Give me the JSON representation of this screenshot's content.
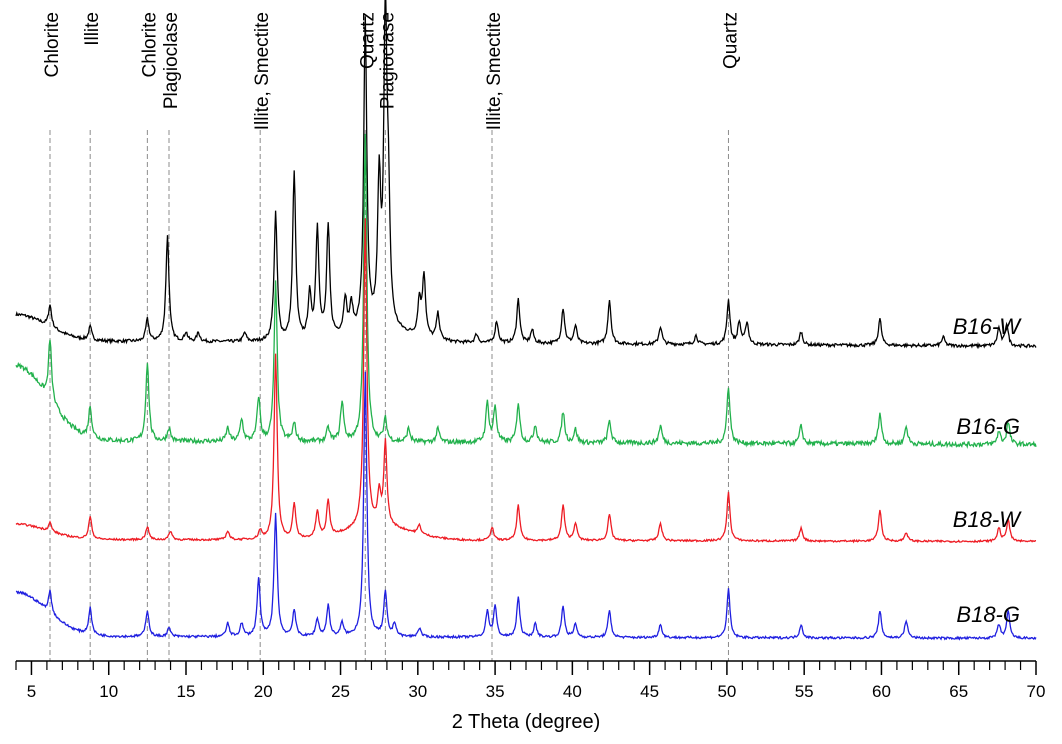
{
  "chart_data": {
    "type": "line",
    "title": "",
    "xlabel": "2 Theta (degree)",
    "ylabel": "",
    "xlim": [
      4,
      70
    ],
    "x_ticks": [
      5,
      10,
      15,
      20,
      25,
      30,
      35,
      40,
      45,
      50,
      55,
      60,
      65,
      70
    ],
    "grid": false,
    "legend": "labels at right end of each curve",
    "mineral_lines": [
      {
        "label": "Chlorite",
        "x": 6.2
      },
      {
        "label": "Illite",
        "x": 8.8
      },
      {
        "label": "Chlorite",
        "x": 12.5
      },
      {
        "label": "Plagioclase",
        "x": 13.9
      },
      {
        "label": "Illite, Smectite",
        "x": 19.8
      },
      {
        "label": "Quartz",
        "x": 26.6
      },
      {
        "label": "Plagioclase",
        "x": 27.9
      },
      {
        "label": "Illite, Smectite",
        "x": 34.8
      },
      {
        "label": "Quartz",
        "x": 50.1
      }
    ],
    "series": [
      {
        "name": "B16-W",
        "color": "#000000",
        "baseline": 0.72,
        "slope": 0.4,
        "start_hump": 0.6,
        "hump_center": 27.5,
        "hump_height": 0.25,
        "tail": 0.2,
        "peaks": [
          [
            6.2,
            0.5
          ],
          [
            8.8,
            0.3
          ],
          [
            12.5,
            0.5
          ],
          [
            13.8,
            2.4
          ],
          [
            15,
            0.2
          ],
          [
            15.8,
            0.2
          ],
          [
            18.8,
            0.2
          ],
          [
            20.8,
            2.9
          ],
          [
            22,
            3.8
          ],
          [
            23,
            1.0
          ],
          [
            23.5,
            2.5
          ],
          [
            24.2,
            2.5
          ],
          [
            25.3,
            0.8
          ],
          [
            25.7,
            0.6
          ],
          [
            26.6,
            7.0
          ],
          [
            27.5,
            3.2
          ],
          [
            27.9,
            7.0
          ],
          [
            28.1,
            2.4
          ],
          [
            30.1,
            0.8
          ],
          [
            30.4,
            1.4
          ],
          [
            31.3,
            0.6
          ],
          [
            33.8,
            0.2
          ],
          [
            35.1,
            0.5
          ],
          [
            36.5,
            1.0
          ],
          [
            37.4,
            0.3
          ],
          [
            39.4,
            0.8
          ],
          [
            40.2,
            0.4
          ],
          [
            42.4,
            1.0
          ],
          [
            45.7,
            0.4
          ],
          [
            48,
            0.2
          ],
          [
            50.1,
            1.0
          ],
          [
            50.8,
            0.5
          ],
          [
            51.3,
            0.5
          ],
          [
            54.8,
            0.3
          ],
          [
            59.9,
            0.6
          ],
          [
            64,
            0.2
          ],
          [
            67.6,
            0.4
          ],
          [
            68.1,
            0.5
          ]
        ]
      },
      {
        "name": "B16-G",
        "color": "#22b14c",
        "baseline": 0.92,
        "slope": 0.3,
        "start_hump": 1.7,
        "hump_center": 0,
        "hump_height": 0,
        "tail": 0.3,
        "peaks": [
          [
            6.2,
            1.4
          ],
          [
            8.8,
            0.7
          ],
          [
            12.5,
            1.8
          ],
          [
            13.9,
            0.3
          ],
          [
            17.7,
            0.3
          ],
          [
            18.6,
            0.5
          ],
          [
            19.7,
            1.0
          ],
          [
            20.8,
            3.6
          ],
          [
            22,
            0.4
          ],
          [
            24.2,
            0.3
          ],
          [
            25.1,
            0.9
          ],
          [
            26.6,
            7.0
          ],
          [
            27.9,
            0.5
          ],
          [
            29.4,
            0.3
          ],
          [
            31.3,
            0.3
          ],
          [
            34.5,
            0.9
          ],
          [
            35,
            0.8
          ],
          [
            36.5,
            0.9
          ],
          [
            37.6,
            0.4
          ],
          [
            39.4,
            0.7
          ],
          [
            40.2,
            0.3
          ],
          [
            42.4,
            0.5
          ],
          [
            45.7,
            0.4
          ],
          [
            50.1,
            1.3
          ],
          [
            54.8,
            0.4
          ],
          [
            59.9,
            0.7
          ],
          [
            61.6,
            0.4
          ],
          [
            67.6,
            0.3
          ],
          [
            68.2,
            0.5
          ]
        ]
      },
      {
        "name": "B18-W",
        "color": "#ee1c24",
        "baseline": 0.43,
        "slope": 0.15,
        "start_hump": 0.35,
        "hump_center": 27.5,
        "hump_height": 0.3,
        "tail": 0.12,
        "peaks": [
          [
            6.2,
            0.2
          ],
          [
            8.8,
            0.5
          ],
          [
            12.5,
            0.3
          ],
          [
            14,
            0.2
          ],
          [
            17.7,
            0.2
          ],
          [
            19.8,
            0.2
          ],
          [
            20.8,
            4.2
          ],
          [
            22,
            0.8
          ],
          [
            23.5,
            0.6
          ],
          [
            24.2,
            0.8
          ],
          [
            26.6,
            7.0
          ],
          [
            27.5,
            0.7
          ],
          [
            27.9,
            1.9
          ],
          [
            30.1,
            0.2
          ],
          [
            34.8,
            0.3
          ],
          [
            36.5,
            0.8
          ],
          [
            39.4,
            0.8
          ],
          [
            40.2,
            0.4
          ],
          [
            42.4,
            0.6
          ],
          [
            45.7,
            0.4
          ],
          [
            50.1,
            1.1
          ],
          [
            54.8,
            0.3
          ],
          [
            59.9,
            0.7
          ],
          [
            61.6,
            0.2
          ],
          [
            67.6,
            0.3
          ],
          [
            68.2,
            0.5
          ]
        ]
      },
      {
        "name": "B18-G",
        "color": "#1f1fe0",
        "baseline": 0.2,
        "slope": 0.15,
        "start_hump": 1.0,
        "hump_center": 0,
        "hump_height": 0,
        "tail": 0.15,
        "peaks": [
          [
            6.2,
            0.5
          ],
          [
            8.8,
            0.6
          ],
          [
            12.5,
            0.6
          ],
          [
            13.9,
            0.2
          ],
          [
            17.7,
            0.3
          ],
          [
            18.6,
            0.3
          ],
          [
            19.7,
            1.3
          ],
          [
            20.8,
            2.8
          ],
          [
            22,
            0.6
          ],
          [
            23.5,
            0.4
          ],
          [
            24.2,
            0.7
          ],
          [
            25.1,
            0.3
          ],
          [
            26.6,
            6.0
          ],
          [
            27.9,
            1.0
          ],
          [
            28.5,
            0.3
          ],
          [
            30.1,
            0.2
          ],
          [
            34.5,
            0.6
          ],
          [
            35,
            0.7
          ],
          [
            36.5,
            0.9
          ],
          [
            37.6,
            0.3
          ],
          [
            39.4,
            0.7
          ],
          [
            40.2,
            0.3
          ],
          [
            42.4,
            0.6
          ],
          [
            45.7,
            0.3
          ],
          [
            50.1,
            1.1
          ],
          [
            54.8,
            0.3
          ],
          [
            59.9,
            0.6
          ],
          [
            61.6,
            0.4
          ],
          [
            67.6,
            0.3
          ],
          [
            68.2,
            0.6
          ]
        ]
      }
    ]
  }
}
